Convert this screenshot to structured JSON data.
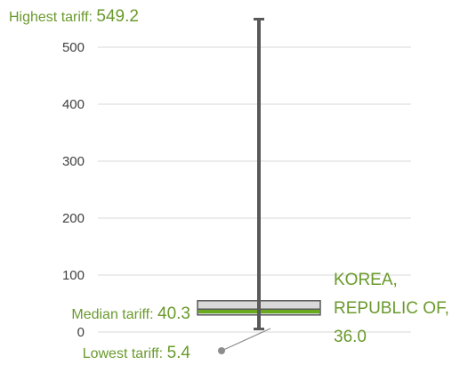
{
  "chart_data": {
    "type": "box",
    "ylim": [
      0,
      560
    ],
    "yticks": [
      0,
      100,
      200,
      300,
      400,
      500
    ],
    "grid": true,
    "box": {
      "min": 5.4,
      "q1": 30,
      "median": 40.3,
      "q3": 55,
      "max": 549.2
    },
    "highlight": {
      "country": "KOREA, REPUBLIC OF,",
      "line1": "KOREA,",
      "line2": "REPUBLIC OF,",
      "value": 36.0,
      "value_text": "36.0"
    },
    "annotations": {
      "highest_word": "Highest",
      "highest_rest": " tariff: ",
      "highest_value": "549.2",
      "median_word": "Median",
      "median_rest": " tariff: ",
      "median_value": "40.3",
      "lowest_word": "Lowest",
      "lowest_rest": " tariff: ",
      "lowest_value": "5.4"
    },
    "colors": {
      "accent": "#6a9a2c",
      "whisker": "#595959",
      "box_fill": "#d9d9d9",
      "box_stroke": "#595959",
      "highlight_line": "#6aaa1e",
      "grid": "#d9d9d9"
    }
  }
}
